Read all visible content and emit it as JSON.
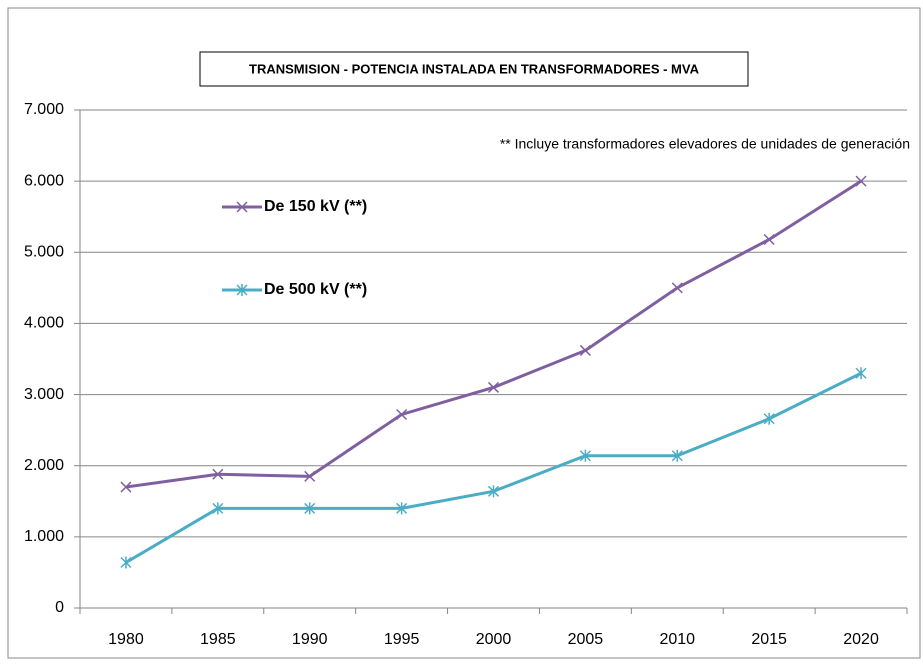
{
  "chart_data": {
    "type": "line",
    "title": "TRANSMISION - POTENCIA INSTALADA EN TRANSFORMADORES - MVA",
    "annotation": "** Incluye transformadores elevadores de unidades de generación",
    "categories": [
      "1980",
      "1985",
      "1990",
      "1995",
      "2000",
      "2005",
      "2010",
      "2015",
      "2020"
    ],
    "series": [
      {
        "name": "De 150 kV (**)",
        "color": "#7f5fa0",
        "marker": "x",
        "values": [
          1700,
          1880,
          1850,
          2720,
          3100,
          3620,
          4500,
          5180,
          6000
        ]
      },
      {
        "name": "De 500 kV (**)",
        "color": "#4bacc6",
        "marker": "asterisk",
        "values": [
          640,
          1400,
          1400,
          1400,
          1640,
          2140,
          2140,
          2660,
          3300
        ]
      }
    ],
    "ylim": [
      0,
      7000
    ],
    "yticks": [
      0,
      {
        "value": 1000,
        "label": "1.000"
      },
      {
        "value": 2000,
        "label": "2.000"
      },
      {
        "value": 3000,
        "label": "3.000"
      },
      {
        "value": 4000,
        "label": "4.000"
      },
      {
        "value": 5000,
        "label": "5.000"
      },
      {
        "value": 6000,
        "label": "6.000"
      },
      {
        "value": 7000,
        "label": "7.000"
      }
    ],
    "grid": true
  }
}
